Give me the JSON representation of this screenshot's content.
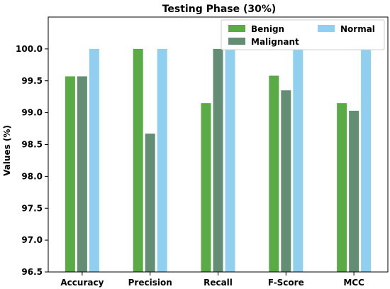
{
  "chart_data": {
    "type": "bar",
    "title": "Testing Phase (30%)",
    "xlabel": "",
    "ylabel": "Values (%)",
    "ylim": [
      96.5,
      100.5
    ],
    "yticks": [
      "96.5",
      "97.0",
      "97.5",
      "98.0",
      "98.5",
      "99.0",
      "99.5",
      "100.0"
    ],
    "ytick_values": [
      96.5,
      97.0,
      97.5,
      98.0,
      98.5,
      99.0,
      99.5,
      100.0
    ],
    "categories": [
      "Accuracy",
      "Precision",
      "Recall",
      "F-Score",
      "MCC"
    ],
    "series": [
      {
        "name": "Benign",
        "color": "#5aab46",
        "values": [
          99.57,
          100.0,
          99.15,
          99.58,
          99.15
        ]
      },
      {
        "name": "Malignant",
        "color": "#648e74",
        "values": [
          99.57,
          98.67,
          100.0,
          99.35,
          99.03
        ]
      },
      {
        "name": "Normal",
        "color": "#90d0ee",
        "values": [
          100.0,
          100.0,
          100.0,
          100.0,
          100.0
        ]
      }
    ],
    "legend_position": "top-right",
    "grid": false
  }
}
